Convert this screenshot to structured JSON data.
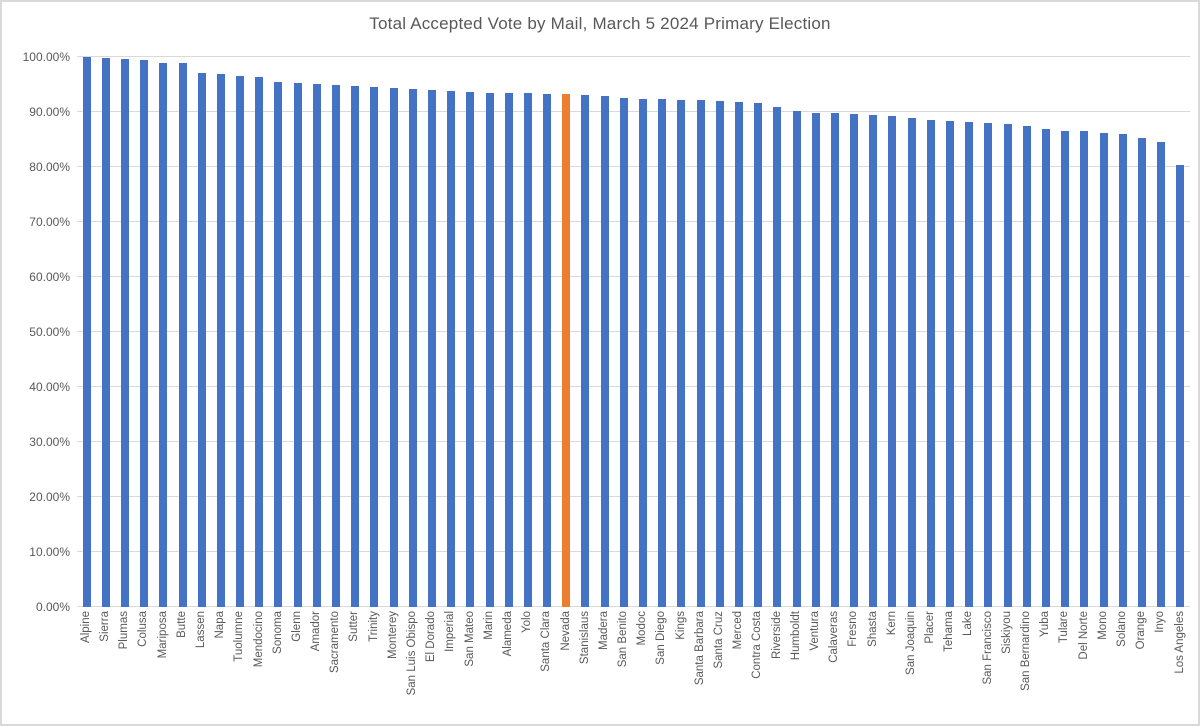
{
  "chart_data": {
    "type": "bar",
    "title": "Total Accepted Vote by Mail, March 5 2024 Primary Election",
    "xlabel": "",
    "ylabel": "",
    "ylim": [
      0,
      100
    ],
    "y_tick_labels": [
      "0.00%",
      "10.00%",
      "20.00%",
      "30.00%",
      "40.00%",
      "50.00%",
      "60.00%",
      "70.00%",
      "80.00%",
      "90.00%",
      "100.00%"
    ],
    "grid": "horizontal",
    "legend": "none",
    "bar_color": "#4472C4",
    "highlight": {
      "category": "Nevada",
      "color": "#ED7D31"
    },
    "categories": [
      "Alpine",
      "Sierra",
      "Plumas",
      "Colusa",
      "Mariposa",
      "Butte",
      "Lassen",
      "Napa",
      "Tuolumne",
      "Mendocino",
      "Sonoma",
      "Glenn",
      "Amador",
      "Sacramento",
      "Sutter",
      "Trinity",
      "Monterey",
      "San Luis Obispo",
      "El Dorado",
      "Imperial",
      "San Mateo",
      "Marin",
      "Alameda",
      "Yolo",
      "Santa Clara",
      "Nevada",
      "Stanislaus",
      "Madera",
      "San Benito",
      "Modoc",
      "San Diego",
      "Kings",
      "Santa Barbara",
      "Santa Cruz",
      "Merced",
      "Contra Costa",
      "Riverside",
      "Humboldt",
      "Ventura",
      "Calaveras",
      "Fresno",
      "Shasta",
      "Kern",
      "San Joaquin",
      "Placer",
      "Tehama",
      "Lake",
      "San Francisco",
      "Siskiyou",
      "San Bernardino",
      "Yuba",
      "Tulare",
      "Del Norte",
      "Mono",
      "Solano",
      "Orange",
      "Inyo",
      "Los Angeles"
    ],
    "values": [
      100.0,
      99.8,
      99.7,
      99.4,
      99.0,
      98.9,
      97.1,
      97.0,
      96.5,
      96.3,
      95.5,
      95.2,
      95.1,
      94.9,
      94.8,
      94.5,
      94.3,
      94.2,
      94.0,
      93.8,
      93.7,
      93.5,
      93.4,
      93.4,
      93.3,
      93.3,
      93.1,
      92.9,
      92.5,
      92.4,
      92.4,
      92.2,
      92.1,
      92.0,
      91.8,
      91.6,
      90.9,
      90.2,
      89.9,
      89.8,
      89.7,
      89.5,
      89.2,
      88.9,
      88.6,
      88.4,
      88.2,
      88.0,
      87.8,
      87.4,
      87.0,
      86.6,
      86.5,
      86.2,
      86.0,
      85.3,
      84.5,
      80.4
    ]
  },
  "colors": {
    "grid": "#d9d9d9",
    "axis_text": "#595959",
    "title_text": "#595959",
    "background": "#ffffff",
    "border": "#d9d9d9"
  }
}
